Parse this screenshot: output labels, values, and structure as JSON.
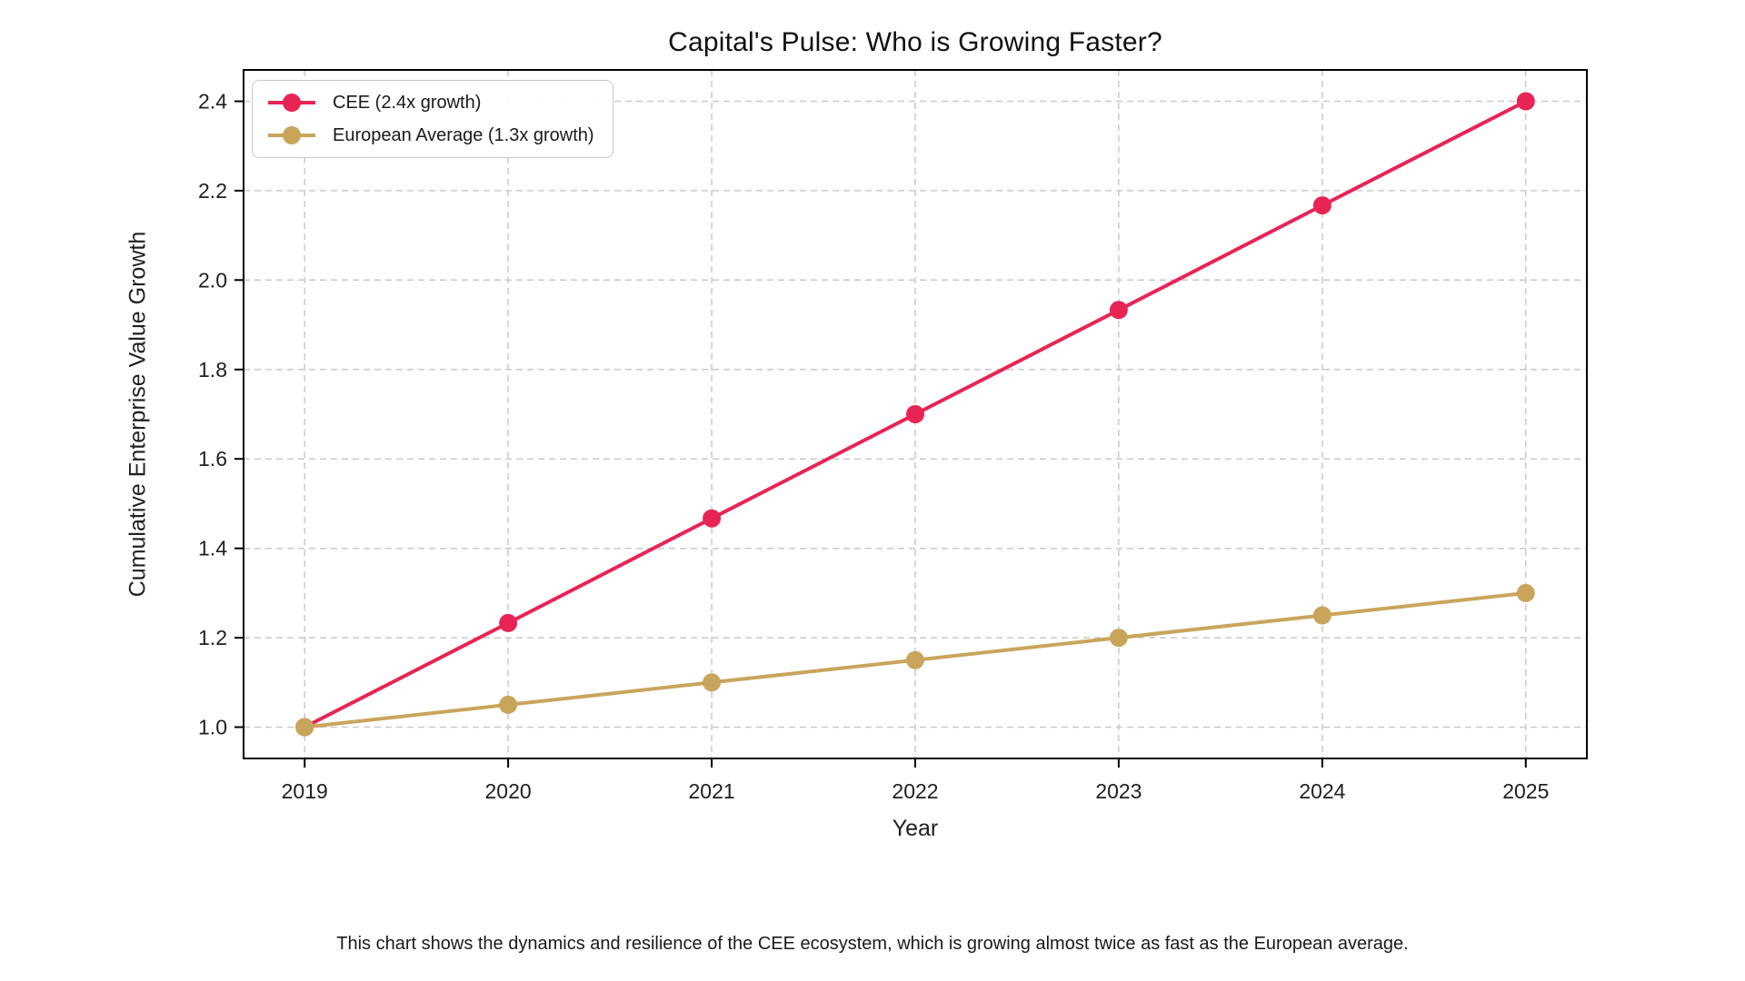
{
  "caption": "This chart shows the dynamics and resilience of the CEE ecosystem, which is growing almost twice as fast as the European average.",
  "chart_data": {
    "type": "line",
    "title": "Capital's Pulse: Who is Growing Faster?",
    "xlabel": "Year",
    "ylabel": "Cumulative Enterprise Value Growth",
    "categories": [
      2019,
      2020,
      2021,
      2022,
      2023,
      2024,
      2025
    ],
    "series": [
      {
        "name": "CEE (2.4x growth)",
        "color": "#E82455",
        "values": [
          1.0,
          1.233,
          1.467,
          1.7,
          1.933,
          2.167,
          2.4
        ]
      },
      {
        "name": "European Average (1.3x growth)",
        "color": "#C9A55C",
        "values": [
          1.0,
          1.05,
          1.1,
          1.15,
          1.2,
          1.25,
          1.3
        ]
      }
    ],
    "yticks": [
      1.0,
      1.2,
      1.4,
      1.6,
      1.8,
      2.0,
      2.2,
      2.4
    ],
    "ylim": [
      0.93,
      2.47
    ],
    "xlim": [
      2018.7,
      2025.3
    ],
    "grid": true,
    "grid_style": "dashed",
    "legend_position": "upper-left",
    "colors": {
      "grid": "#c9c9c9",
      "spine": "#000000",
      "text": "#202020"
    }
  }
}
